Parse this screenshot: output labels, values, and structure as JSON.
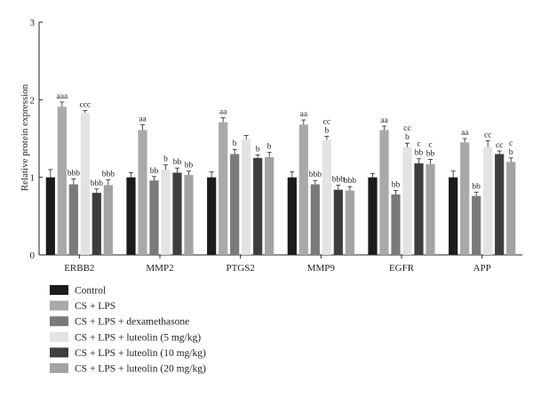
{
  "chart_data": {
    "type": "bar",
    "ylabel": "Relative protein expression",
    "xlabel": "",
    "ylim": [
      0,
      3
    ],
    "yticks": [
      0,
      1,
      2,
      3
    ],
    "grid": false,
    "legend_position": "bottom-left",
    "categories": [
      "ERBB2",
      "MMP2",
      "PTGS2",
      "MMP9",
      "EGFR",
      "APP"
    ],
    "series": [
      {
        "name": "Control",
        "color": "#1c1c1c",
        "values": [
          1.0,
          1.0,
          1.0,
          1.0,
          1.0,
          1.0
        ],
        "errors": [
          0.1,
          0.06,
          0.07,
          0.07,
          0.05,
          0.08
        ],
        "labels": [
          "",
          "",
          "",
          "",
          "",
          ""
        ]
      },
      {
        "name": "CS + LPS",
        "color": "#a9a9a9",
        "values": [
          1.91,
          1.61,
          1.71,
          1.68,
          1.61,
          1.45
        ],
        "errors": [
          0.06,
          0.07,
          0.06,
          0.06,
          0.05,
          0.05
        ],
        "labels": [
          "aaa",
          "aa",
          "aa",
          "aa",
          "aa",
          "aa"
        ]
      },
      {
        "name": "CS + LPS + dexamethasone",
        "color": "#7a7a7a",
        "values": [
          0.91,
          0.96,
          1.3,
          0.91,
          0.78,
          0.76
        ],
        "errors": [
          0.07,
          0.05,
          0.06,
          0.05,
          0.05,
          0.05
        ],
        "labels": [
          "bbb",
          "bb",
          "b",
          "bbb",
          "bb",
          "bb"
        ]
      },
      {
        "name": "CS + LPS + luteolin (5 mg/kg)",
        "color": "#e3e3e3",
        "values": [
          1.83,
          1.1,
          1.49,
          1.48,
          1.39,
          1.39
        ],
        "errors": [
          0.03,
          0.06,
          0.05,
          0.05,
          0.05,
          0.08
        ],
        "labels": [
          "ccc",
          "b",
          "",
          "cc|b",
          "cc|b",
          "cc"
        ]
      },
      {
        "name": "CS + LPS + luteolin (10 mg/kg)",
        "color": "#3e3e3e",
        "values": [
          0.8,
          1.06,
          1.25,
          0.84,
          1.18,
          1.3
        ],
        "errors": [
          0.05,
          0.06,
          0.04,
          0.06,
          0.06,
          0.04
        ],
        "labels": [
          "bbb",
          "bb",
          "b",
          "bbb",
          "c|bb",
          "cc"
        ]
      },
      {
        "name": "CS + LPS + luteolin (20 mg/kg)",
        "color": "#a3a3a3",
        "values": [
          0.9,
          1.03,
          1.26,
          0.83,
          1.17,
          1.2
        ],
        "errors": [
          0.07,
          0.05,
          0.06,
          0.05,
          0.06,
          0.05
        ],
        "labels": [
          "bbb",
          "bb",
          "b",
          "bbb",
          "c|bb",
          "c|b"
        ]
      }
    ]
  }
}
